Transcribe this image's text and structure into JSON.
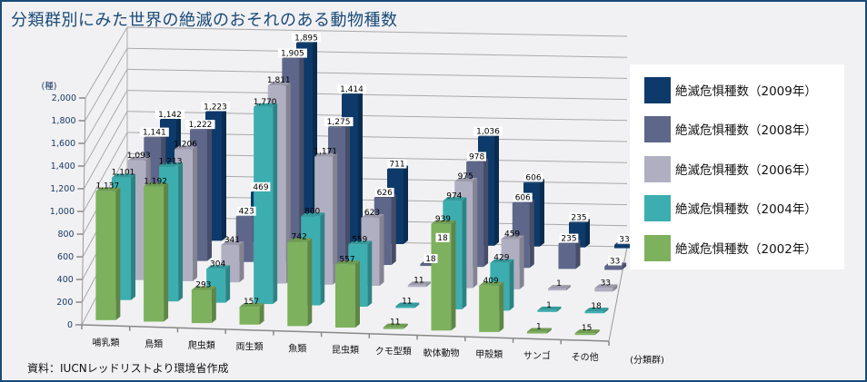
{
  "title": "分類群別にみた世界の絶滅のおそれのある動物種数",
  "source": "資料：IUCNレッドリストより環境省作成",
  "chart_data": {
    "type": "bar",
    "subtype": "3d-clustered-depth",
    "title": "分類群別にみた世界の絶滅のおそれのある動物種数",
    "ylabel": "(種)",
    "xlabel": "(分類群)",
    "ylim": [
      0,
      2000
    ],
    "yticks": [
      "0",
      "200",
      "400",
      "600",
      "800",
      "1,000",
      "1,200",
      "1,400",
      "1,600",
      "1,800",
      "2,000"
    ],
    "grid": true,
    "legend_position": "right",
    "categories": [
      "哺乳類",
      "鳥類",
      "爬虫類",
      "両生類",
      "魚類",
      "昆虫類",
      "クモ型類",
      "軟体動物",
      "甲殻類",
      "サンゴ",
      "その他"
    ],
    "series": [
      {
        "name": "絶滅危惧種数（2002年）",
        "color": "#7eb15e",
        "values": [
          1137,
          1192,
          293,
          157,
          742,
          557,
          11,
          939,
          409,
          1,
          15
        ],
        "labels": [
          "1,137",
          "1,192",
          "293",
          "157",
          "742",
          "557",
          "11",
          "939",
          "409",
          "1",
          "15"
        ]
      },
      {
        "name": "絶滅危惧種数（2004年）",
        "color": "#3caeb0",
        "values": [
          1101,
          1213,
          304,
          1770,
          800,
          559,
          11,
          974,
          429,
          1,
          18
        ],
        "labels": [
          "1,101",
          "1,213",
          "304",
          "1,770",
          "800",
          "559",
          "11",
          "974",
          "429",
          "1",
          "18"
        ]
      },
      {
        "name": "絶滅危惧種数（2006年）",
        "color": "#b0afc2",
        "values": [
          1093,
          1206,
          341,
          1811,
          1171,
          623,
          11,
          975,
          459,
          1,
          33
        ],
        "labels": [
          "1,093",
          "1,206",
          "341",
          "1,811",
          "1,171",
          "623",
          "11",
          "975",
          "459",
          "1",
          "33"
        ]
      },
      {
        "name": "絶滅危惧種数（2008年）",
        "color": "#5e6689",
        "values": [
          1141,
          1222,
          423,
          1905,
          1275,
          626,
          18,
          978,
          606,
          235,
          33
        ],
        "labels": [
          "1,141",
          "1,222",
          "423",
          "1,905",
          "1,275",
          "626",
          "18",
          "978",
          "606",
          "235",
          "33"
        ]
      },
      {
        "name": "絶滅危惧種数（2009年）",
        "color": "#0d3a6a",
        "values": [
          1142,
          1223,
          469,
          1895,
          1414,
          711,
          18,
          1036,
          606,
          235,
          33
        ],
        "labels": [
          "1,142",
          "1,223",
          "469",
          "1,895",
          "1,414",
          "711",
          "18",
          "1,036",
          "606",
          "235",
          "33"
        ]
      }
    ]
  },
  "legend": [
    {
      "label": "絶滅危惧種数（2009年）",
      "color": "#0d3a6a"
    },
    {
      "label": "絶滅危惧種数（2008年）",
      "color": "#5e6689"
    },
    {
      "label": "絶滅危惧種数（2006年）",
      "color": "#b0afc2"
    },
    {
      "label": "絶滅危惧種数（2004年）",
      "color": "#3caeb0"
    },
    {
      "label": "絶滅危惧種数（2002年）",
      "color": "#7eb15e"
    }
  ]
}
